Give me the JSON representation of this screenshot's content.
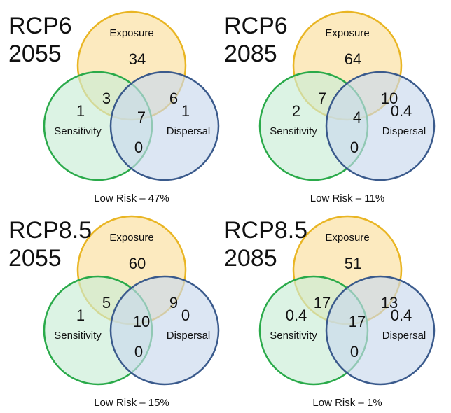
{
  "colors": {
    "exposure_fill": "#fbe2a6",
    "exposure_stroke": "#e9b523",
    "sensitivity_fill": "#c9ecd5",
    "sensitivity_stroke": "#2aaa4a",
    "dispersal_fill": "#c9d8ec",
    "dispersal_stroke": "#3a5a8c"
  },
  "labels": {
    "exposure": "Exposure",
    "sensitivity": "Sensitivity",
    "dispersal": "Dispersal"
  },
  "panels": [
    {
      "scenario": "RCP6",
      "year": "2055",
      "values": {
        "exposure_only": "34",
        "exp_sens": "3",
        "exp_disp": "6",
        "all": "7",
        "sens_only": "1",
        "disp_only": "1",
        "sens_disp": "0"
      },
      "low_risk": "Low Risk – 47%"
    },
    {
      "scenario": "RCP6",
      "year": "2085",
      "values": {
        "exposure_only": "64",
        "exp_sens": "7",
        "exp_disp": "10",
        "all": "4",
        "sens_only": "2",
        "disp_only": "0.4",
        "sens_disp": "0"
      },
      "low_risk": "Low Risk – 11%"
    },
    {
      "scenario": "RCP8.5",
      "year": "2055",
      "values": {
        "exposure_only": "60",
        "exp_sens": "5",
        "exp_disp": "9",
        "all": "10",
        "sens_only": "1",
        "disp_only": "0",
        "sens_disp": "0"
      },
      "low_risk": "Low Risk – 15%"
    },
    {
      "scenario": "RCP8.5",
      "year": "2085",
      "values": {
        "exposure_only": "51",
        "exp_sens": "17",
        "exp_disp": "13",
        "all": "17",
        "sens_only": "0.4",
        "disp_only": "0.4",
        "sens_disp": "0"
      },
      "low_risk": "Low Risk – 1%"
    }
  ]
}
